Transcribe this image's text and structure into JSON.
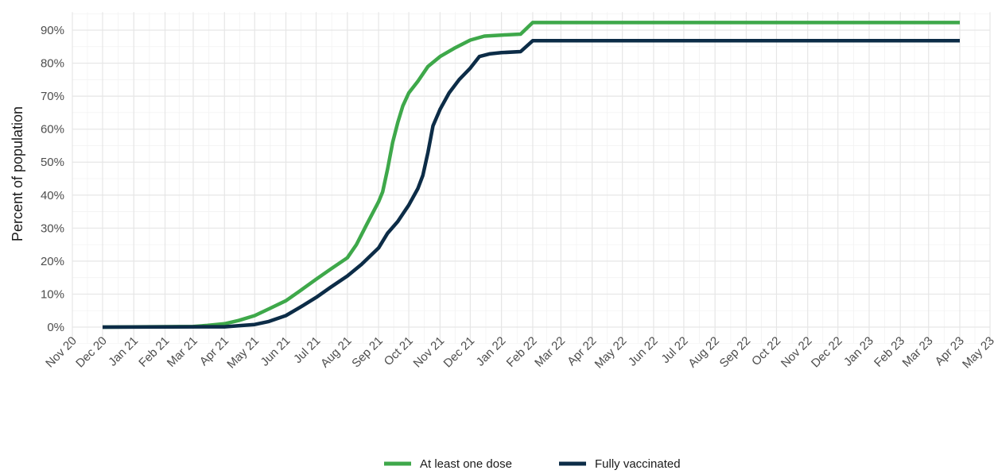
{
  "chart_data": {
    "type": "line",
    "ylabel": "Percent of population",
    "ylim": [
      0,
      0.95
    ],
    "y_ticks": [
      0,
      0.1,
      0.2,
      0.3,
      0.4,
      0.5,
      0.6,
      0.7,
      0.8,
      0.9
    ],
    "y_tick_labels": [
      "0%",
      "10%",
      "20%",
      "30%",
      "40%",
      "50%",
      "60%",
      "70%",
      "80%",
      "90%"
    ],
    "x_ticks": [
      "2020-11-01",
      "2020-12-01",
      "2021-01-01",
      "2021-02-01",
      "2021-03-01",
      "2021-04-01",
      "2021-05-01",
      "2021-06-01",
      "2021-07-01",
      "2021-08-01",
      "2021-09-01",
      "2021-10-01",
      "2021-11-01",
      "2021-12-01",
      "2022-01-01",
      "2022-02-01",
      "2022-03-01",
      "2022-04-01",
      "2022-05-01",
      "2022-06-01",
      "2022-07-01",
      "2022-08-01",
      "2022-09-01",
      "2022-10-01",
      "2022-11-01",
      "2022-12-01",
      "2023-01-01",
      "2023-02-01",
      "2023-03-01",
      "2023-04-01",
      "2023-05-01"
    ],
    "x_tick_labels": [
      "Nov 20",
      "Dec 20",
      "Jan 21",
      "Feb 21",
      "Mar 21",
      "Apr 21",
      "May 21",
      "Jun 21",
      "Jul 21",
      "Aug 21",
      "Sep 21",
      "Oct 21",
      "Nov 21",
      "Dec 21",
      "Jan 22",
      "Feb 22",
      "Mar 22",
      "Apr 22",
      "May 22",
      "Jun 22",
      "Jul 22",
      "Aug 22",
      "Sep 22",
      "Oct 22",
      "Nov 22",
      "Dec 22",
      "Jan 23",
      "Feb 23",
      "Mar 23",
      "Apr 23",
      "May 23"
    ],
    "grid": true,
    "legend_position": "bottom",
    "series": [
      {
        "name": "At least one dose",
        "color": "#3ea84a",
        "points": [
          [
            "2020-12-01",
            0.0
          ],
          [
            "2021-03-01",
            0.002
          ],
          [
            "2021-03-15",
            0.005
          ],
          [
            "2021-04-01",
            0.01
          ],
          [
            "2021-04-15",
            0.02
          ],
          [
            "2021-05-01",
            0.035
          ],
          [
            "2021-05-15",
            0.055
          ],
          [
            "2021-06-01",
            0.08
          ],
          [
            "2021-06-15",
            0.11
          ],
          [
            "2021-07-01",
            0.145
          ],
          [
            "2021-07-15",
            0.175
          ],
          [
            "2021-08-01",
            0.21
          ],
          [
            "2021-08-10",
            0.25
          ],
          [
            "2021-08-20",
            0.31
          ],
          [
            "2021-09-01",
            0.38
          ],
          [
            "2021-09-05",
            0.41
          ],
          [
            "2021-09-10",
            0.48
          ],
          [
            "2021-09-15",
            0.56
          ],
          [
            "2021-09-20",
            0.62
          ],
          [
            "2021-09-25",
            0.67
          ],
          [
            "2021-10-01",
            0.71
          ],
          [
            "2021-10-10",
            0.745
          ],
          [
            "2021-10-20",
            0.79
          ],
          [
            "2021-11-01",
            0.82
          ],
          [
            "2021-11-15",
            0.845
          ],
          [
            "2021-12-01",
            0.87
          ],
          [
            "2021-12-15",
            0.882
          ],
          [
            "2022-01-01",
            0.885
          ],
          [
            "2022-01-20",
            0.888
          ],
          [
            "2022-02-01",
            0.923
          ],
          [
            "2023-04-01",
            0.923
          ]
        ]
      },
      {
        "name": "Fully vaccinated",
        "color": "#0c2c47",
        "points": [
          [
            "2020-12-01",
            0.0
          ],
          [
            "2021-04-01",
            0.001
          ],
          [
            "2021-04-15",
            0.004
          ],
          [
            "2021-05-01",
            0.008
          ],
          [
            "2021-05-15",
            0.017
          ],
          [
            "2021-06-01",
            0.035
          ],
          [
            "2021-06-15",
            0.06
          ],
          [
            "2021-07-01",
            0.09
          ],
          [
            "2021-07-15",
            0.12
          ],
          [
            "2021-08-01",
            0.155
          ],
          [
            "2021-08-15",
            0.19
          ],
          [
            "2021-09-01",
            0.24
          ],
          [
            "2021-09-10",
            0.285
          ],
          [
            "2021-09-20",
            0.32
          ],
          [
            "2021-10-01",
            0.37
          ],
          [
            "2021-10-10",
            0.42
          ],
          [
            "2021-10-15",
            0.46
          ],
          [
            "2021-10-20",
            0.53
          ],
          [
            "2021-10-25",
            0.61
          ],
          [
            "2021-11-01",
            0.66
          ],
          [
            "2021-11-10",
            0.71
          ],
          [
            "2021-11-20",
            0.75
          ],
          [
            "2021-12-01",
            0.785
          ],
          [
            "2021-12-10",
            0.82
          ],
          [
            "2021-12-20",
            0.828
          ],
          [
            "2022-01-01",
            0.832
          ],
          [
            "2022-01-20",
            0.835
          ],
          [
            "2022-02-01",
            0.868
          ],
          [
            "2023-04-01",
            0.868
          ]
        ]
      }
    ]
  }
}
